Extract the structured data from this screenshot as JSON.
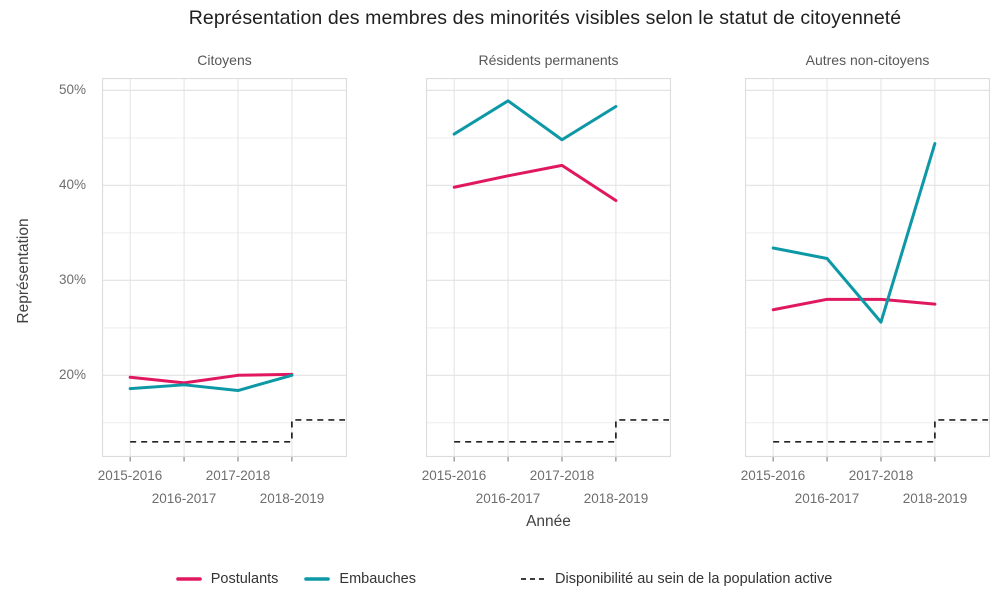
{
  "title": "Représentation des membres des minorités visibles selon le statut de citoyenneté",
  "chart_data": {
    "type": "line",
    "facetted": true,
    "xlabel": "Année",
    "ylabel": "Représentation",
    "categories": [
      "2015-2016",
      "2016-2017",
      "2017-2018",
      "2018-2019"
    ],
    "ylim": [
      11.4,
      51.3
    ],
    "yticks_major": [
      20,
      30,
      40,
      50
    ],
    "yticks_minor": [
      15,
      25,
      35,
      45
    ],
    "ytick_labels": [
      "50%",
      "40%",
      "30%",
      "20%"
    ],
    "grid": "on",
    "legend_position": "bottom",
    "series": [
      {
        "name": "Postulants",
        "color": "#e0185f",
        "style": "solid"
      },
      {
        "name": "Embauches",
        "color": "#0d98a6",
        "style": "solid"
      }
    ],
    "availability": {
      "name": "Disponibilité au sein de la population active",
      "color": "#222222",
      "style": "dashed-step",
      "values": [
        13.0,
        13.0,
        13.0,
        15.3
      ]
    },
    "facets": [
      {
        "label": "Citoyens",
        "series": [
          {
            "name": "Postulants",
            "values": [
              19.8,
              19.2,
              20.0,
              20.1
            ]
          },
          {
            "name": "Embauches",
            "values": [
              18.6,
              19.0,
              18.4,
              20.0
            ]
          }
        ]
      },
      {
        "label": "Résidents permanents",
        "series": [
          {
            "name": "Postulants",
            "values": [
              39.8,
              41.0,
              42.1,
              38.4
            ]
          },
          {
            "name": "Embauches",
            "values": [
              45.4,
              48.9,
              44.8,
              48.3
            ]
          }
        ]
      },
      {
        "label": "Autres non-citoyens",
        "series": [
          {
            "name": "Postulants",
            "values": [
              26.9,
              28.0,
              28.0,
              27.5
            ]
          },
          {
            "name": "Embauches",
            "values": [
              33.4,
              32.3,
              25.6,
              44.4
            ]
          }
        ]
      }
    ],
    "colors": {
      "grid_major": "#e3e3e3",
      "grid_minor": "#eeeeee",
      "panel_border": "#dcdcdc",
      "tick_mark": "#8a8a8a"
    }
  }
}
